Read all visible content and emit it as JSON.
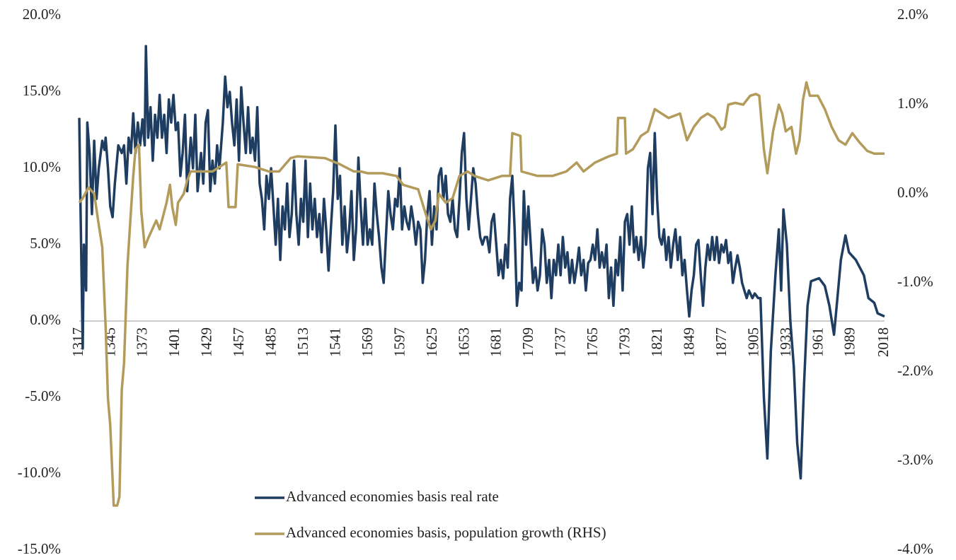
{
  "chart_data": {
    "type": "line",
    "xlim": [
      1317,
      2018
    ],
    "xticks": [
      1317,
      1345,
      1373,
      1401,
      1429,
      1457,
      1485,
      1513,
      1541,
      1569,
      1597,
      1625,
      1653,
      1681,
      1709,
      1737,
      1765,
      1793,
      1821,
      1849,
      1877,
      1905,
      1933,
      1961,
      1989,
      2018
    ],
    "ylim": [
      -15,
      20
    ],
    "yticks": [
      {
        "value": -15,
        "label": "-15.0%"
      },
      {
        "value": -10,
        "label": "-10.0%"
      },
      {
        "value": -5,
        "label": "-5.0%"
      },
      {
        "value": 0,
        "label": "0.0%"
      },
      {
        "value": 5,
        "label": "5.0%"
      },
      {
        "value": 10,
        "label": "10.0%"
      },
      {
        "value": 15,
        "label": "15.0%"
      },
      {
        "value": 20,
        "label": "20.0%"
      }
    ],
    "y2lim": [
      -4,
      2
    ],
    "y2ticks": [
      {
        "value": -4,
        "label": "-4.0%"
      },
      {
        "value": -3,
        "label": "-3.0%"
      },
      {
        "value": -2,
        "label": "-2.0%"
      },
      {
        "value": -1,
        "label": "-1.0%"
      },
      {
        "value": 0,
        "label": "0.0%"
      },
      {
        "value": 1,
        "label": "1.0%"
      },
      {
        "value": 2,
        "label": "2.0%"
      }
    ],
    "legend": "bottom",
    "series": [
      {
        "name": "Advanced economies basis real rate",
        "color": "#1f3d61",
        "x": [
          1317,
          1318,
          1320,
          1321,
          1323,
          1324,
          1326,
          1328,
          1330,
          1332,
          1334,
          1337,
          1339,
          1340,
          1342,
          1344,
          1346,
          1348,
          1351,
          1354,
          1356,
          1358,
          1360,
          1362,
          1364,
          1366,
          1368,
          1370,
          1372,
          1374,
          1375,
          1377,
          1379,
          1381,
          1383,
          1385,
          1387,
          1389,
          1391,
          1393,
          1395,
          1397,
          1399,
          1401,
          1403,
          1405,
          1407,
          1409,
          1411,
          1414,
          1416,
          1418,
          1420,
          1423,
          1425,
          1427,
          1429,
          1431,
          1433,
          1435,
          1437,
          1439,
          1442,
          1444,
          1446,
          1448,
          1450,
          1452,
          1454,
          1456,
          1458,
          1460,
          1462,
          1464,
          1466,
          1468,
          1470,
          1472,
          1474,
          1476,
          1478,
          1480,
          1482,
          1484,
          1486,
          1488,
          1490,
          1492,
          1494,
          1496,
          1498,
          1500,
          1502,
          1504,
          1506,
          1508,
          1510,
          1512,
          1514,
          1516,
          1518,
          1520,
          1522,
          1524,
          1526,
          1528,
          1530,
          1532,
          1534,
          1536,
          1538,
          1540,
          1542,
          1544,
          1546,
          1548,
          1550,
          1552,
          1554,
          1556,
          1558,
          1560,
          1562,
          1564,
          1566,
          1568,
          1570,
          1572,
          1574,
          1576,
          1578,
          1580,
          1582,
          1584,
          1586,
          1588,
          1590,
          1592,
          1594,
          1596,
          1598,
          1600,
          1602,
          1604,
          1606,
          1608,
          1610,
          1612,
          1614,
          1616,
          1618,
          1620,
          1622,
          1624,
          1626,
          1628,
          1630,
          1632,
          1634,
          1636,
          1638,
          1640,
          1642,
          1644,
          1646,
          1648,
          1650,
          1652,
          1654,
          1656,
          1658,
          1660,
          1662,
          1664,
          1666,
          1668,
          1670,
          1672,
          1674,
          1676,
          1678,
          1680,
          1682,
          1684,
          1686,
          1688,
          1690,
          1692,
          1694,
          1696,
          1698,
          1700,
          1702,
          1704,
          1706,
          1708,
          1710,
          1712,
          1714,
          1716,
          1718,
          1720,
          1722,
          1724,
          1726,
          1728,
          1730,
          1732,
          1734,
          1736,
          1738,
          1740,
          1742,
          1744,
          1746,
          1748,
          1750,
          1752,
          1754,
          1756,
          1758,
          1760,
          1762,
          1764,
          1766,
          1768,
          1770,
          1772,
          1774,
          1776,
          1778,
          1780,
          1782,
          1784,
          1786,
          1788,
          1790,
          1792,
          1794,
          1796,
          1798,
          1800,
          1802,
          1804,
          1806,
          1808,
          1810,
          1812,
          1814,
          1816,
          1818,
          1820,
          1822,
          1824,
          1826,
          1828,
          1830,
          1832,
          1834,
          1836,
          1838,
          1840,
          1842,
          1844,
          1846,
          1848,
          1850,
          1852,
          1854,
          1856,
          1858,
          1860,
          1862,
          1864,
          1866,
          1868,
          1870,
          1872,
          1874,
          1876,
          1878,
          1880,
          1882,
          1884,
          1886,
          1888,
          1890,
          1892,
          1894,
          1896,
          1898,
          1900,
          1903,
          1905,
          1908,
          1910,
          1913,
          1916,
          1919,
          1923,
          1926,
          1928,
          1930,
          1933,
          1936,
          1939,
          1942,
          1945,
          1948,
          1951,
          1954,
          1961,
          1966,
          1970,
          1974,
          1977,
          1980,
          1984,
          1987,
          1993,
          2000,
          2004,
          2009,
          2012,
          2018
        ],
        "values": [
          13.3,
          8,
          -1.8,
          5,
          2,
          13,
          11,
          7,
          11.8,
          8,
          10,
          11.8,
          11.2,
          12,
          10,
          7.5,
          6.8,
          9,
          11.5,
          11,
          11.5,
          9,
          12,
          11,
          13.6,
          11,
          13,
          11.5,
          13.2,
          11.5,
          18,
          12,
          14,
          10.5,
          13.5,
          12,
          14.8,
          12,
          13.5,
          11,
          14.5,
          13,
          14.8,
          12.5,
          13,
          9.5,
          11,
          13.5,
          8.5,
          12,
          10,
          13.5,
          8.5,
          11,
          9,
          13,
          13.8,
          8.5,
          10.5,
          9,
          11.5,
          10,
          13,
          16,
          14,
          15,
          13,
          11.5,
          14.5,
          10.5,
          15.3,
          13,
          11,
          14,
          11,
          12,
          10.5,
          14,
          9,
          8,
          6,
          9.5,
          8,
          10,
          7.5,
          5,
          8,
          4,
          7.5,
          6,
          9,
          5.5,
          7,
          10.5,
          7,
          5,
          8,
          6.5,
          10.5,
          5.5,
          9,
          6,
          8,
          5.5,
          7,
          4.5,
          8,
          6,
          3.3,
          6,
          8.5,
          12.8,
          8,
          9.5,
          5,
          7.5,
          4.5,
          6,
          8.5,
          4,
          6,
          10.7,
          7.5,
          5,
          8,
          5,
          6,
          5,
          9,
          7,
          5.5,
          3.5,
          2.5,
          5.5,
          8.5,
          7,
          6,
          8,
          7.5,
          10,
          6,
          7.5,
          6.5,
          6,
          7.5,
          6.5,
          5,
          6.5,
          6,
          2.5,
          4,
          7,
          8.5,
          5,
          7.5,
          6,
          9.5,
          10,
          8,
          9.5,
          7,
          6.5,
          8,
          6,
          5.5,
          8,
          11,
          12.3,
          8,
          6,
          8,
          10,
          9,
          7,
          5.5,
          5,
          5.5,
          5.5,
          4.5,
          6.5,
          7,
          5,
          3,
          4,
          2.8,
          5,
          3.5,
          8,
          9.5,
          6,
          1,
          2.5,
          2,
          8.5,
          5,
          7.5,
          5,
          2.5,
          3.5,
          2,
          3,
          6,
          5,
          2.5,
          4,
          1.5,
          4,
          3,
          5,
          3,
          5.5,
          3.5,
          4.5,
          2.5,
          4,
          2.5,
          3.5,
          4.8,
          3,
          4,
          2,
          3.8,
          4,
          5,
          4,
          6,
          3.5,
          4.5,
          3.5,
          5,
          1.5,
          3.5,
          1,
          4,
          3,
          5.5,
          2,
          6.5,
          7,
          5,
          7.5,
          4.5,
          5.5,
          4,
          5.5,
          3.5,
          5,
          10,
          11,
          7,
          12.3,
          8,
          5.5,
          5,
          6,
          4,
          5.5,
          3.5,
          5,
          6,
          4,
          5.5,
          3,
          4,
          2,
          0.3,
          2,
          3,
          5,
          5.3,
          3,
          1,
          3.5,
          5,
          4,
          5.5,
          4,
          5.5,
          3.8,
          5,
          4.5,
          5.3,
          3.8,
          4.5,
          2.5,
          3.5,
          4.3,
          3.5,
          2.5,
          2,
          1.5,
          2,
          1.5,
          1.8,
          1.5,
          1.5,
          -5,
          -9,
          -2,
          3,
          6,
          2,
          7.3,
          5,
          0,
          -3,
          -8,
          -10.3,
          -4,
          1,
          2.6,
          2.8,
          2.3,
          1,
          -0.9,
          1.5,
          4,
          5.6,
          4.5,
          4,
          3,
          1.5,
          1.2,
          0.5,
          0.3
        ]
      },
      {
        "name": "Advanced economies basis, population growth (RHS)",
        "color": "#b39b5b",
        "axis": "y2",
        "x": [
          1317,
          1320,
          1325,
          1330,
          1334,
          1337,
          1340,
          1342,
          1344,
          1347,
          1350,
          1352,
          1354,
          1356,
          1359,
          1361,
          1364,
          1366,
          1369,
          1371,
          1374,
          1377,
          1384,
          1387,
          1393,
          1396,
          1398,
          1401,
          1403,
          1408,
          1411,
          1414,
          1427,
          1433,
          1439,
          1445,
          1447,
          1453,
          1455,
          1470,
          1482,
          1491,
          1501,
          1507,
          1531,
          1544,
          1556,
          1562,
          1568,
          1581,
          1593,
          1599,
          1612,
          1618,
          1623,
          1627,
          1630,
          1636,
          1642,
          1648,
          1655,
          1661,
          1673,
          1685,
          1692,
          1694,
          1701,
          1702,
          1716,
          1729,
          1741,
          1750,
          1756,
          1766,
          1778,
          1785,
          1786,
          1792,
          1793,
          1799,
          1806,
          1812,
          1818,
          1824,
          1830,
          1840,
          1846,
          1852,
          1858,
          1864,
          1870,
          1876,
          1879,
          1882,
          1888,
          1895,
          1901,
          1906,
          1909,
          1913,
          1916,
          1921,
          1926,
          1929,
          1932,
          1937,
          1941,
          1944,
          1947,
          1950,
          1953,
          1960,
          1966,
          1972,
          1978,
          1984,
          1990,
          1996,
          2003,
          2009,
          2018
        ],
        "values": [
          -0.1,
          -0.05,
          0.07,
          0,
          -0.35,
          -0.6,
          -1.5,
          -2.3,
          -2.6,
          -3.5,
          -3.5,
          -3.4,
          -2.2,
          -1.9,
          -0.8,
          -0.4,
          0.2,
          0.5,
          0.55,
          -0.2,
          -0.6,
          -0.5,
          -0.3,
          -0.4,
          -0.1,
          0.1,
          -0.15,
          -0.35,
          -0.1,
          0,
          0.15,
          0.25,
          0.25,
          0.25,
          0.3,
          0.35,
          -0.15,
          -0.15,
          0.33,
          0.3,
          0.25,
          0.25,
          0.4,
          0.42,
          0.4,
          0.33,
          0.25,
          0.25,
          0.23,
          0.23,
          0.2,
          0.1,
          0.05,
          -0.2,
          -0.4,
          -0.3,
          0,
          -0.1,
          -0.05,
          0.2,
          0.25,
          0.2,
          0.15,
          0.2,
          0.2,
          0.68,
          0.65,
          0.25,
          0.2,
          0.2,
          0.25,
          0.35,
          0.25,
          0.35,
          0.42,
          0.45,
          0.85,
          0.85,
          0.45,
          0.5,
          0.65,
          0.7,
          0.95,
          0.9,
          0.85,
          0.9,
          0.6,
          0.75,
          0.85,
          0.9,
          0.85,
          0.72,
          0.75,
          1,
          1.02,
          1,
          1.1,
          1.12,
          1.1,
          0.5,
          0.23,
          0.7,
          1,
          0.9,
          0.7,
          0.75,
          0.45,
          0.6,
          1.05,
          1.25,
          1.1,
          1.1,
          0.95,
          0.75,
          0.6,
          0.55,
          0.68,
          0.58,
          0.48,
          0.45,
          0.45
        ]
      }
    ]
  }
}
